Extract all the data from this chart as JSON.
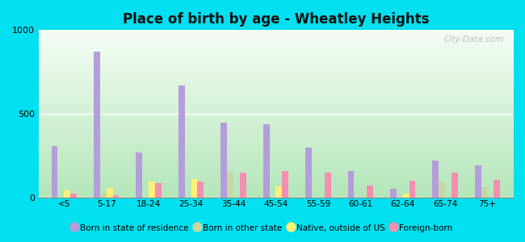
{
  "categories": [
    "<5",
    "5-17",
    "18-24",
    "25-34",
    "35-44",
    "45-54",
    "55-59",
    "60-61",
    "62-64",
    "65-74",
    "75+"
  ],
  "series": {
    "Born in state of residence": [
      310,
      870,
      270,
      670,
      450,
      440,
      300,
      160,
      55,
      220,
      195
    ],
    "Born in other state": [
      0,
      25,
      0,
      0,
      155,
      0,
      0,
      0,
      0,
      95,
      65
    ],
    "Native, outside of US": [
      45,
      60,
      95,
      110,
      0,
      70,
      0,
      0,
      25,
      0,
      0
    ],
    "Foreign-born": [
      25,
      15,
      90,
      95,
      150,
      160,
      150,
      75,
      100,
      150,
      105
    ]
  },
  "colors": {
    "Born in state of residence": "#b39ddb",
    "Born in other state": "#c5d8a4",
    "Native, outside of US": "#fff176",
    "Foreign-born": "#f48fb1"
  },
  "title": "Place of birth by age - Wheatley Heights",
  "ylim": [
    0,
    1000
  ],
  "yticks": [
    0,
    500,
    1000
  ],
  "outer_background": "#00e0f0",
  "plot_bg_top": "#f5fdf5",
  "plot_bg_bottom": "#c8eacc",
  "watermark": "City-Data.com",
  "bar_width": 0.15,
  "legend_fontsize": 7.5,
  "title_fontsize": 12
}
